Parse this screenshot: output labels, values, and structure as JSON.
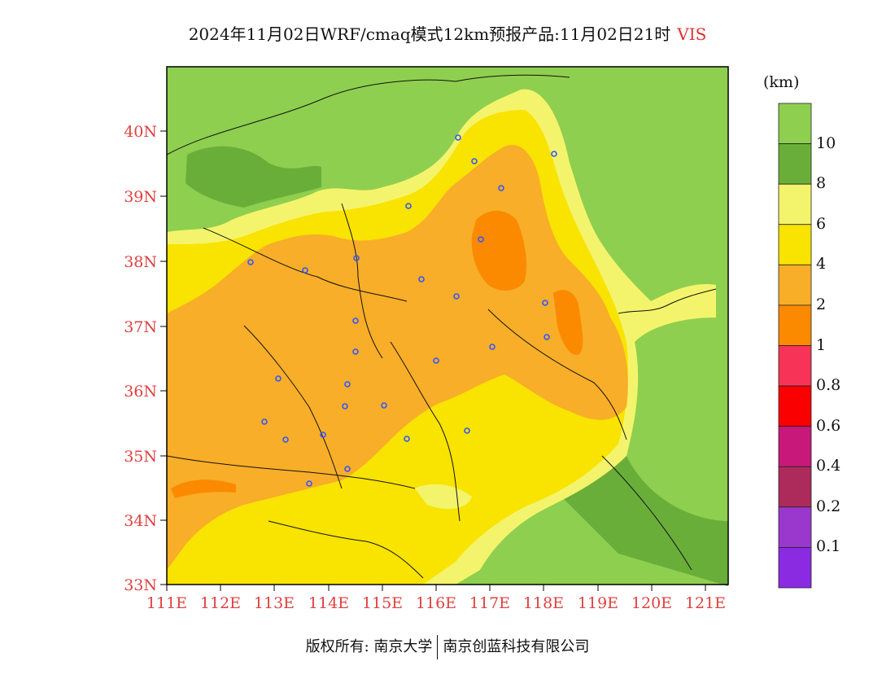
{
  "title": {
    "main": "2024年11月02日WRF/cmaq模式12km预报产品:11月02日21时",
    "variable": "VIS"
  },
  "axes": {
    "lat_labels": [
      "40N",
      "39N",
      "38N",
      "37N",
      "36N",
      "35N",
      "34N",
      "33N"
    ],
    "lon_labels": [
      "111E",
      "112E",
      "113E",
      "114E",
      "115E",
      "116E",
      "117E",
      "118E",
      "119E",
      "120E",
      "121E"
    ],
    "lat_range": [
      33,
      41
    ],
    "lon_range": [
      111,
      121.4
    ]
  },
  "colorbar": {
    "unit": "(km)",
    "labels": [
      "10",
      "8",
      "6",
      "4",
      "2",
      "1",
      "0.8",
      "0.6",
      "0.4",
      "0.2",
      "0.1"
    ],
    "colors": [
      "#8fcf4f",
      "#6aae3a",
      "#f4f46c",
      "#f9e300",
      "#f8ae28",
      "#fb8a00",
      "#f73458",
      "#fb0000",
      "#c8187a",
      "#ad2b5a",
      "#9a37cc",
      "#8a2be2"
    ]
  },
  "footer": {
    "left": "版权所有: 南京大学",
    "right": "南京创蓝科技有限公司"
  }
}
